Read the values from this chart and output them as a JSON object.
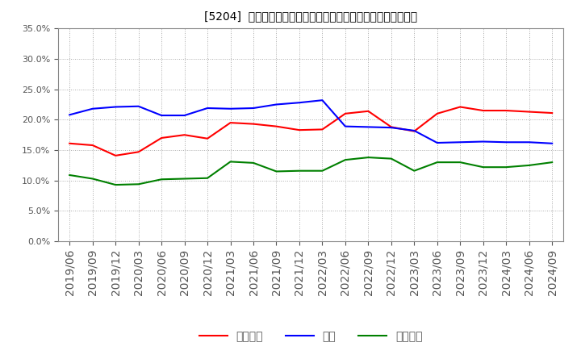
{
  "title": "[5204]  売上債権、在庫、買入債務の総資産に対する比率の推移",
  "x_labels": [
    "2019/06",
    "2019/09",
    "2019/12",
    "2020/03",
    "2020/06",
    "2020/09",
    "2020/12",
    "2021/03",
    "2021/06",
    "2021/09",
    "2021/12",
    "2022/03",
    "2022/06",
    "2022/09",
    "2022/12",
    "2023/03",
    "2023/06",
    "2023/09",
    "2023/12",
    "2024/03",
    "2024/06",
    "2024/09"
  ],
  "uriageSaiken": [
    0.161,
    0.158,
    0.141,
    0.147,
    0.17,
    0.175,
    0.169,
    0.195,
    0.193,
    0.189,
    0.183,
    0.184,
    0.21,
    0.214,
    0.188,
    0.181,
    0.21,
    0.221,
    0.215,
    0.215,
    0.213,
    0.211
  ],
  "zaiko": [
    0.208,
    0.218,
    0.221,
    0.222,
    0.207,
    0.207,
    0.219,
    0.218,
    0.219,
    0.225,
    0.228,
    0.232,
    0.189,
    0.188,
    0.187,
    0.182,
    0.162,
    0.163,
    0.164,
    0.163,
    0.163,
    0.161
  ],
  "kaiireSaimu": [
    0.109,
    0.103,
    0.093,
    0.094,
    0.102,
    0.103,
    0.104,
    0.131,
    0.129,
    0.115,
    0.116,
    0.116,
    0.134,
    0.138,
    0.136,
    0.116,
    0.13,
    0.13,
    0.122,
    0.122,
    0.125,
    0.13
  ],
  "label_uriage": "売上債権",
  "label_zaiko": "在庫",
  "label_kaiire": "買入債務",
  "color_uriage": "#ff0000",
  "color_zaiko": "#0000ff",
  "color_kaiire": "#008000",
  "ylim": [
    0.0,
    0.35
  ],
  "yticks": [
    0.0,
    0.05,
    0.1,
    0.15,
    0.2,
    0.25,
    0.3,
    0.35
  ],
  "background_color": "#ffffff",
  "grid_color": "#aaaaaa",
  "title_color": "#000000",
  "tick_color": "#555555"
}
